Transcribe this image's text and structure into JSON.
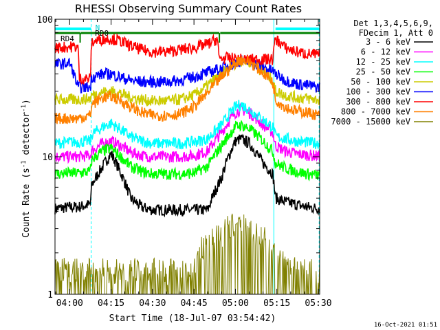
{
  "chart_data": {
    "type": "line",
    "title": "RHESSI Observing Summary Count Rates",
    "xlabel": "Start Time (18-Jul-07 03:54:42)",
    "ylabel": "Count Rate (s",
    "ylabel_sup": "-1",
    "ylabel_tail": " detector",
    "ylabel_end": ")",
    "y_scale": "log",
    "ylim": [
      1,
      100
    ],
    "y_ticks": [
      "1",
      "10",
      "100"
    ],
    "x_ticks": [
      "04:00",
      "04:15",
      "04:30",
      "04:45",
      "05:00",
      "05:15",
      "05:30"
    ],
    "x_tick_minutes": [
      0,
      15,
      30,
      45,
      60,
      75,
      90
    ],
    "xlim_minutes": [
      -5.3,
      90.5
    ],
    "x_unit_note": "minutes after 04:00 on 18-Jul-07",
    "legend": {
      "header": [
        "Det 1,3,4,5,6,9,",
        "FDecim 1, Att 0"
      ],
      "placement": "right"
    },
    "timestamp": "16-Oct-2021 01:51",
    "flags": [
      {
        "label": "RD0",
        "color": "#00ffff",
        "segments": [
          [
            -5.3,
            7.8
          ],
          [
            74.5,
            90.5
          ]
        ]
      },
      {
        "label": "N",
        "color": "#00ffff",
        "segments": [
          [
            7.8,
            7.8
          ]
        ]
      },
      {
        "label": "RD4",
        "color": "#008000",
        "segments": [
          [
            -5.3,
            3.8
          ],
          [
            4.0,
            54.2
          ],
          [
            54.5,
            90.5
          ]
        ]
      }
    ],
    "vlines": [
      {
        "x": -5.3,
        "style": "solid"
      },
      {
        "x": 7.8,
        "style": "dashed"
      },
      {
        "x": 73.9,
        "style": "solid"
      },
      {
        "x": 90.3,
        "style": "dashed"
      }
    ],
    "series": [
      {
        "name": "3 - 6 keV",
        "color": "#000000",
        "x": [
          -5,
          0,
          3,
          7.5,
          8,
          12,
          15,
          18,
          22,
          26,
          30,
          35,
          40,
          45,
          50,
          55,
          60,
          62,
          65,
          70,
          73.5,
          74.5,
          78,
          82,
          86,
          90
        ],
        "y": [
          4.2,
          4.3,
          4.3,
          4.5,
          6.2,
          8.5,
          10.5,
          8,
          5,
          4.3,
          4.1,
          4.1,
          4.1,
          4.1,
          4.1,
          7,
          13,
          13.5,
          12.5,
          9,
          7.5,
          5,
          4.7,
          4.5,
          4.3,
          4.2
        ]
      },
      {
        "name": "6 - 12 keV",
        "color": "#ff00ff",
        "x": [
          -5,
          0,
          3,
          7.5,
          8,
          12,
          15,
          18,
          22,
          26,
          30,
          35,
          40,
          45,
          50,
          55,
          60,
          62,
          65,
          70,
          73.5,
          74.5,
          78,
          82,
          86,
          90
        ],
        "y": [
          10,
          10,
          10,
          10.2,
          11,
          12.5,
          13,
          12.2,
          10.8,
          10.2,
          10,
          10,
          10,
          10.2,
          11,
          15,
          21,
          22,
          21,
          17,
          15,
          12,
          11,
          10.5,
          10.3,
          10.1
        ]
      },
      {
        "name": "12 - 25 keV",
        "color": "#00ffff",
        "x": [
          -5,
          0,
          3,
          7.5,
          8,
          12,
          15,
          18,
          22,
          26,
          30,
          35,
          40,
          45,
          50,
          55,
          60,
          62,
          65,
          70,
          73.5,
          74.5,
          78,
          82,
          86,
          90
        ],
        "y": [
          12.5,
          12.8,
          12.8,
          13,
          14.5,
          16.5,
          17.5,
          16,
          14,
          13,
          12.5,
          12.5,
          12.5,
          12.8,
          13.5,
          17,
          23,
          24,
          22,
          18.5,
          16.5,
          14,
          13.5,
          13,
          12.7,
          12.5
        ]
      },
      {
        "name": "25 - 50 keV",
        "color": "#00ff00",
        "x": [
          -5,
          0,
          3,
          7.5,
          8,
          12,
          15,
          18,
          22,
          26,
          30,
          35,
          40,
          45,
          50,
          55,
          60,
          62,
          65,
          70,
          73.5,
          74.5,
          78,
          82,
          86,
          90
        ],
        "y": [
          7.5,
          7.6,
          7.6,
          7.8,
          9.5,
          11,
          11.5,
          10.2,
          8.5,
          7.8,
          7.5,
          7.5,
          7.5,
          7.6,
          8.5,
          12,
          16.5,
          17,
          16,
          13,
          11,
          9,
          8.3,
          7.8,
          7.5,
          7.3
        ]
      },
      {
        "name": "50 - 100 keV",
        "color": "#cccc00",
        "x": [
          -5,
          0,
          3,
          7.5,
          8,
          12,
          15,
          18,
          22,
          26,
          30,
          35,
          40,
          45,
          50,
          55,
          60,
          62,
          65,
          70,
          73.5,
          74.5,
          78,
          82,
          86,
          90
        ],
        "y": [
          26,
          26,
          26,
          26.5,
          28,
          29.5,
          30,
          29,
          27,
          26,
          25.5,
          25.5,
          26,
          28,
          33,
          40,
          48,
          50,
          49,
          42,
          36,
          30,
          28,
          27,
          26.5,
          26
        ]
      },
      {
        "name": "100 - 300 keV",
        "color": "#0000ff",
        "x": [
          -5,
          0,
          3,
          7.5,
          8,
          12,
          15,
          18,
          22,
          26,
          30,
          35,
          40,
          45,
          50,
          55,
          60,
          62,
          65,
          70,
          73.5,
          74.5,
          78,
          82,
          86,
          90
        ],
        "y": [
          47,
          48,
          32,
          32,
          38,
          40,
          40,
          38,
          36,
          35,
          35,
          35,
          36,
          38,
          41,
          44,
          48,
          50,
          49,
          45,
          42,
          40,
          36,
          34,
          33,
          32
        ]
      },
      {
        "name": "300 - 800 keV",
        "color": "#ff0000",
        "x": [
          -5,
          0,
          3,
          3.5,
          7.5,
          8,
          12,
          15,
          18,
          22,
          26,
          30,
          35,
          40,
          45,
          50,
          53.5,
          54,
          58,
          62,
          66,
          70,
          73.5,
          74.5,
          78,
          82,
          86,
          90
        ],
        "y": [
          62,
          63,
          63,
          37,
          37,
          68,
          72,
          72,
          70,
          64,
          60,
          58,
          58,
          60,
          62,
          66,
          72,
          52,
          52,
          51,
          51,
          51,
          51,
          72,
          62,
          58,
          56,
          55
        ]
      },
      {
        "name": "800 - 7000 keV",
        "color": "#ff8000",
        "x": [
          -5,
          0,
          3,
          7.5,
          8,
          12,
          15,
          18,
          22,
          26,
          30,
          35,
          40,
          45,
          50,
          55,
          60,
          62,
          65,
          70,
          73.5,
          74.5,
          78,
          82,
          86,
          90
        ],
        "y": [
          19,
          19,
          19,
          20,
          24,
          27,
          27.5,
          26,
          23,
          21,
          20,
          20,
          20.5,
          23,
          29,
          38,
          48,
          51,
          49,
          41,
          35,
          26,
          23,
          21.5,
          21,
          20
        ]
      },
      {
        "name": "7000 - 15000 keV",
        "color": "#808000",
        "style": "noisy",
        "x": [
          -5,
          0,
          10,
          30,
          46,
          47,
          52,
          55,
          58,
          64,
          68,
          72,
          75,
          78,
          82,
          86,
          90
        ],
        "y": [
          1.6,
          1.5,
          1.5,
          1.5,
          1.5,
          2.2,
          2.5,
          2.8,
          3.2,
          3.2,
          2.8,
          2.4,
          1.9,
          1.7,
          1.5,
          1.5,
          1.5
        ]
      }
    ]
  }
}
